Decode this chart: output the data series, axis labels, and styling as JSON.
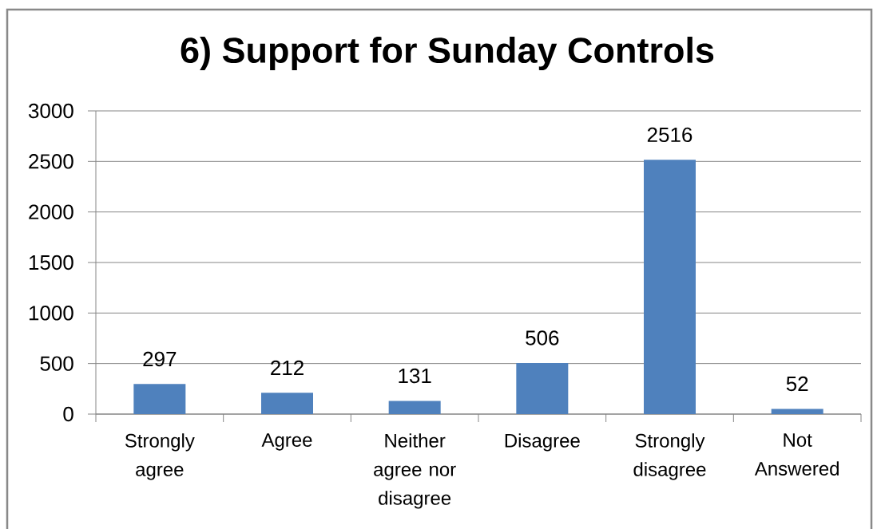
{
  "chart_data": {
    "type": "bar",
    "title": "6) Support for Sunday Controls",
    "categories": [
      "Strongly agree",
      "Agree",
      "Neither agree nor disagree",
      "Disagree",
      "Strongly disagree",
      "Not Answered"
    ],
    "values": [
      297,
      212,
      131,
      506,
      2516,
      52
    ],
    "color": "#4f81bd",
    "ylim": [
      0,
      3000
    ],
    "yticks": [
      0,
      500,
      1000,
      1500,
      2000,
      2500,
      3000
    ],
    "grid": "y",
    "data_labels": true
  }
}
